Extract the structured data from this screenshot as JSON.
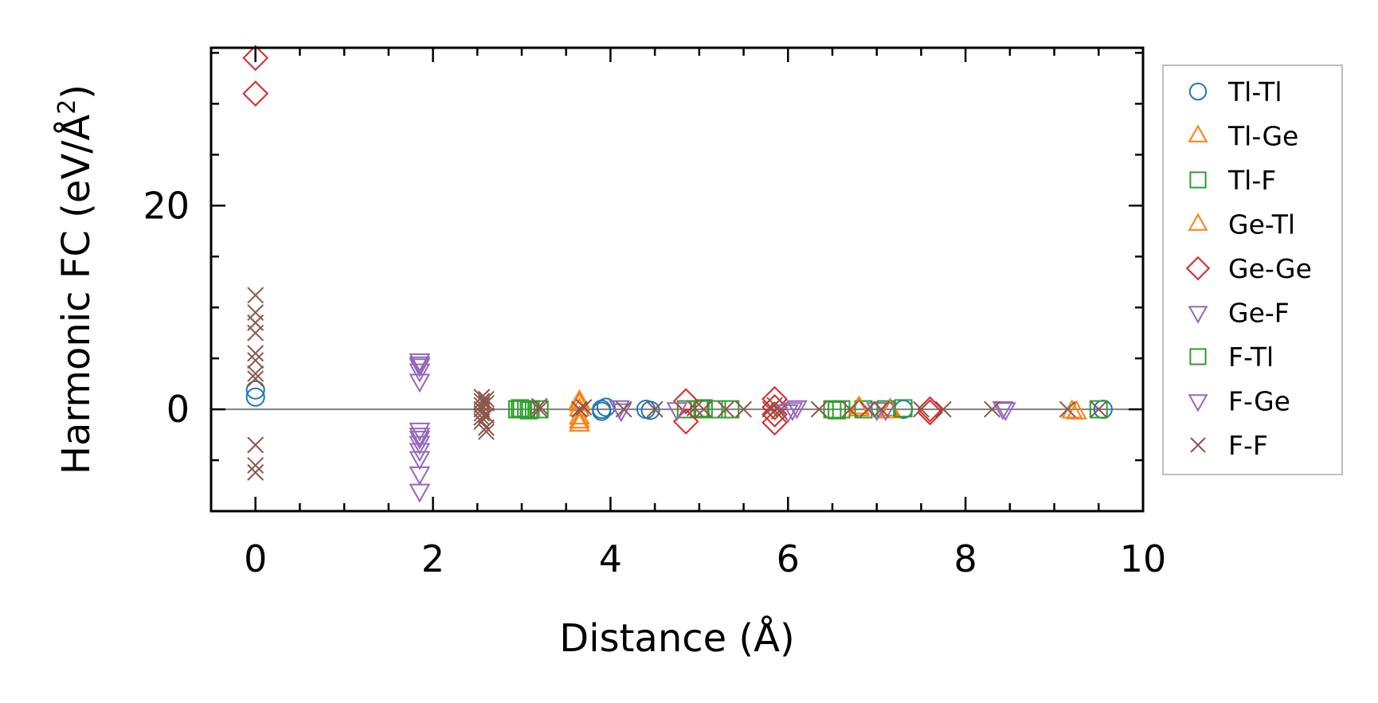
{
  "chart_data": {
    "type": "scatter",
    "title": "",
    "xlabel": "Distance (Å)",
    "ylabel": "Harmonic FC (eV/Å²)",
    "ylabel_parts": {
      "main": "Harmonic FC (eV/Å",
      "sup": "2",
      "end": ")"
    },
    "xlim": [
      -0.5,
      10
    ],
    "ylim": [
      -10,
      35.5
    ],
    "xticks": [
      0,
      2,
      4,
      6,
      8,
      10
    ],
    "xtick_labels": [
      "0",
      "2",
      "4",
      "6",
      "8",
      "10"
    ],
    "yticks": [
      0,
      20
    ],
    "ytick_labels": [
      "0",
      "20"
    ],
    "grid": false,
    "zero_line": true,
    "legend_position": "outside-right",
    "series": [
      {
        "name": "Tl-Tl",
        "marker": "circle",
        "color": "#1f77b4",
        "points": [
          [
            0,
            1.2
          ],
          [
            0,
            1.9
          ],
          [
            3.9,
            0
          ],
          [
            3.9,
            -0.2
          ],
          [
            3.95,
            0.2
          ],
          [
            4.4,
            0
          ],
          [
            4.45,
            -0.1
          ],
          [
            7.3,
            0
          ],
          [
            9.55,
            0
          ]
        ]
      },
      {
        "name": "Tl-Ge",
        "marker": "triangle-up",
        "color": "#ff7f0e",
        "points": [
          [
            3.65,
            0.5
          ],
          [
            3.65,
            -1.5
          ],
          [
            3.65,
            -0.8
          ],
          [
            3.65,
            0
          ],
          [
            6.8,
            0
          ],
          [
            7.15,
            0
          ],
          [
            9.2,
            -0.2
          ]
        ]
      },
      {
        "name": "Tl-F",
        "marker": "square",
        "color": "#2ca02c",
        "points": [
          [
            2.95,
            0
          ],
          [
            3.0,
            0
          ],
          [
            3.05,
            0
          ],
          [
            3.1,
            0
          ],
          [
            3.2,
            0
          ],
          [
            4.85,
            0
          ],
          [
            5.0,
            0
          ],
          [
            5.2,
            0
          ],
          [
            5.35,
            0
          ],
          [
            6.5,
            0
          ],
          [
            6.6,
            0
          ],
          [
            6.85,
            0
          ],
          [
            7.1,
            0
          ],
          [
            9.5,
            0
          ]
        ]
      },
      {
        "name": "Ge-Tl",
        "marker": "triangle-up",
        "color": "#ff7f0e",
        "points": [
          [
            3.65,
            0.8
          ],
          [
            3.65,
            -1.2
          ],
          [
            6.8,
            0.2
          ],
          [
            7.15,
            -0.2
          ],
          [
            9.25,
            -0.3
          ]
        ]
      },
      {
        "name": "Ge-Ge",
        "marker": "diamond",
        "color": "#d62728",
        "points": [
          [
            0,
            34.5
          ],
          [
            0,
            31.0
          ],
          [
            4.85,
            0.8
          ],
          [
            4.85,
            -1.2
          ],
          [
            5.85,
            1.0
          ],
          [
            5.85,
            -1.3
          ],
          [
            5.85,
            0.2
          ],
          [
            5.85,
            -0.5
          ],
          [
            7.6,
            0
          ],
          [
            7.6,
            -0.3
          ]
        ]
      },
      {
        "name": "Ge-F",
        "marker": "triangle-down",
        "color": "#9467bd",
        "points": [
          [
            1.85,
            4.8
          ],
          [
            1.85,
            4.3
          ],
          [
            1.85,
            3.8
          ],
          [
            1.85,
            2.8
          ],
          [
            1.85,
            -2.0
          ],
          [
            1.85,
            -2.8
          ],
          [
            1.85,
            -3.3
          ],
          [
            1.85,
            -4.8
          ],
          [
            1.85,
            -6.3
          ],
          [
            1.85,
            -8.0
          ],
          [
            4.1,
            0.2
          ],
          [
            4.75,
            0
          ],
          [
            6.05,
            0
          ],
          [
            6.1,
            0.2
          ],
          [
            7.0,
            0
          ],
          [
            7.1,
            0
          ],
          [
            8.45,
            0
          ]
        ]
      },
      {
        "name": "F-Tl",
        "marker": "square",
        "color": "#2ca02c",
        "points": [
          [
            2.98,
            0.1
          ],
          [
            3.08,
            -0.1
          ],
          [
            5.05,
            0.1
          ],
          [
            6.55,
            -0.1
          ],
          [
            7.3,
            0.1
          ]
        ]
      },
      {
        "name": "F-Ge",
        "marker": "triangle-down",
        "color": "#9467bd",
        "points": [
          [
            1.85,
            4.5
          ],
          [
            1.85,
            -2.5
          ],
          [
            1.85,
            -4.0
          ],
          [
            4.12,
            -0.1
          ],
          [
            6.0,
            -0.2
          ],
          [
            8.42,
            0.1
          ]
        ]
      },
      {
        "name": "F-F",
        "marker": "x",
        "color": "#8c564b",
        "points": [
          [
            0,
            11.2
          ],
          [
            0,
            9.5
          ],
          [
            0,
            8.5
          ],
          [
            0,
            7.5
          ],
          [
            0,
            5.5
          ],
          [
            0,
            4.8
          ],
          [
            0,
            3.5
          ],
          [
            0,
            3.0
          ],
          [
            0,
            -3.5
          ],
          [
            0,
            -5.5
          ],
          [
            0,
            -6.2
          ],
          [
            2.55,
            1.2
          ],
          [
            2.55,
            0.8
          ],
          [
            2.55,
            0.4
          ],
          [
            2.55,
            0
          ],
          [
            2.55,
            -0.4
          ],
          [
            2.55,
            -0.8
          ],
          [
            2.55,
            -1.2
          ],
          [
            2.6,
            0.6
          ],
          [
            2.6,
            -0.6
          ],
          [
            2.6,
            -1.8
          ],
          [
            2.6,
            -2.2
          ],
          [
            2.6,
            1.0
          ],
          [
            3.2,
            0
          ],
          [
            3.2,
            0.3
          ],
          [
            3.65,
            0
          ],
          [
            3.7,
            0.2
          ],
          [
            4.15,
            0
          ],
          [
            4.5,
            0
          ],
          [
            4.95,
            0.1
          ],
          [
            5.05,
            0
          ],
          [
            5.3,
            0
          ],
          [
            5.5,
            0
          ],
          [
            5.8,
            0
          ],
          [
            5.85,
            0.4
          ],
          [
            5.9,
            -0.2
          ],
          [
            6.35,
            0
          ],
          [
            6.7,
            0
          ],
          [
            6.9,
            0
          ],
          [
            7.05,
            0
          ],
          [
            7.5,
            0
          ],
          [
            7.75,
            0
          ],
          [
            8.3,
            0
          ],
          [
            9.15,
            0
          ],
          [
            9.5,
            0
          ]
        ]
      }
    ]
  }
}
